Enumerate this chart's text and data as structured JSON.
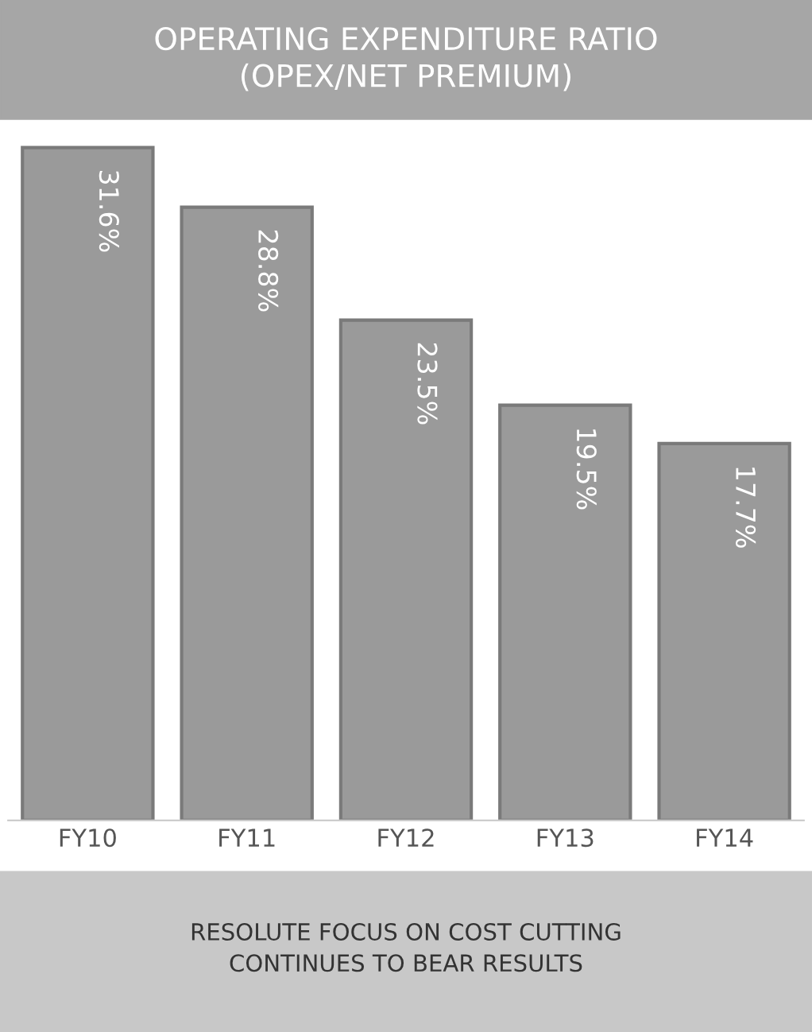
{
  "chart_data": {
    "type": "bar",
    "title": "OPERATING EXPENDITURE RATIO\n(OPEX/NET PREMIUM)",
    "categories": [
      "FY10",
      "FY11",
      "FY12",
      "FY13",
      "FY14"
    ],
    "values": [
      31.6,
      28.8,
      23.5,
      19.5,
      17.7
    ],
    "value_labels": [
      "31.6%",
      "28.8%",
      "23.5%",
      "19.5%",
      "17.7%"
    ],
    "color": "#9a9a9a",
    "tick_labels": "x",
    "grid": false,
    "annotations": [
      "RESOLUTE FOCUS ON COST CUTTING\nCONTINUES TO BEAR RESULTS"
    ]
  }
}
